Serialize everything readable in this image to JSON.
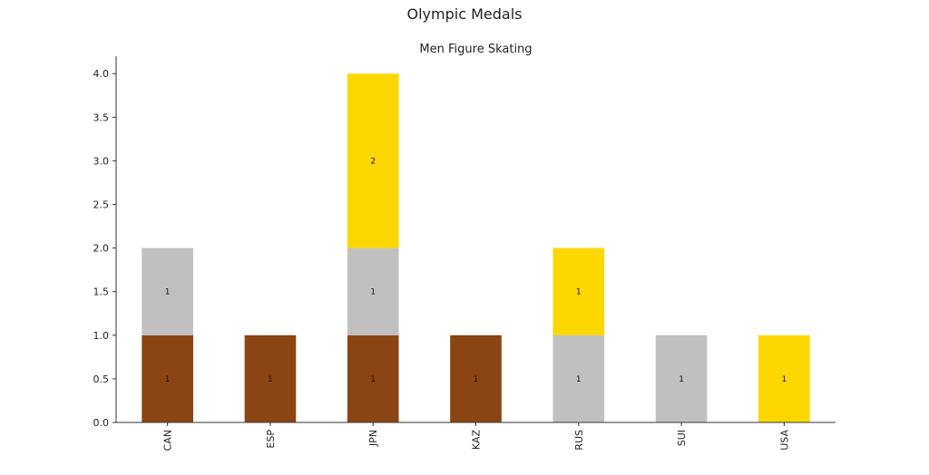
{
  "figure": {
    "title": "Olympic Medals"
  },
  "chart_data": {
    "type": "bar",
    "stacked": true,
    "title": "Men Figure Skating",
    "xlabel": "",
    "ylabel": "",
    "categories": [
      "CAN",
      "ESP",
      "JPN",
      "KAZ",
      "RUS",
      "SUI",
      "USA"
    ],
    "series": [
      {
        "values": [
          1,
          1,
          1,
          1,
          0,
          0,
          0
        ],
        "color": "#8B4513"
      },
      {
        "values": [
          1,
          0,
          1,
          0,
          1,
          1,
          0
        ],
        "color": "#C0C0C0"
      },
      {
        "values": [
          0,
          0,
          2,
          0,
          1,
          0,
          1
        ],
        "color": "#FFD700"
      }
    ],
    "ylim": [
      0,
      4.2
    ],
    "yticks": [
      "0.0",
      "0.5",
      "1.0",
      "1.5",
      "2.0",
      "2.5",
      "3.0",
      "3.5",
      "4.0"
    ],
    "grid": false,
    "legend": false
  }
}
